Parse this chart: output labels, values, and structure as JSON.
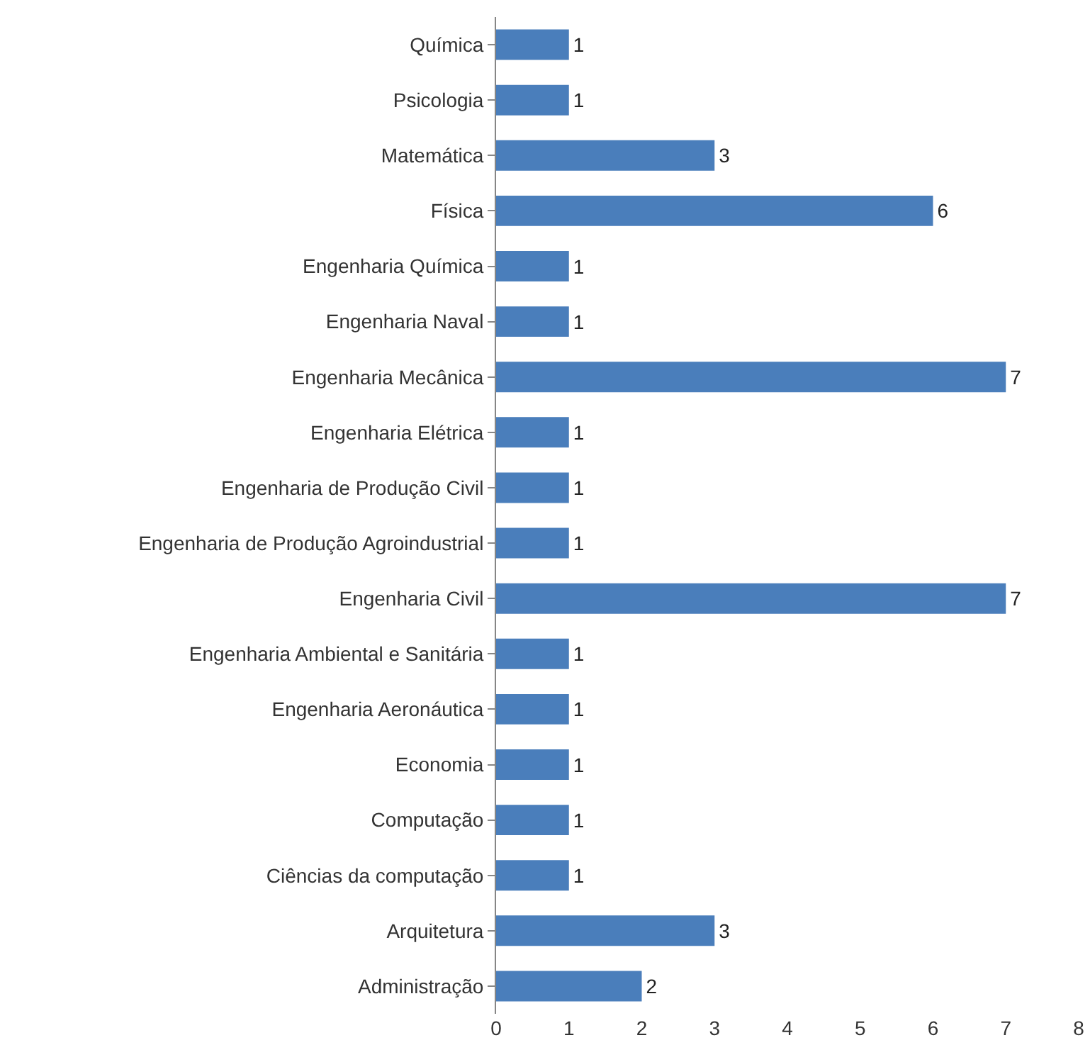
{
  "chart_data": {
    "type": "bar",
    "orientation": "horizontal",
    "categories": [
      "Química",
      "Psicologia",
      "Matemática",
      "Física",
      "Engenharia Química",
      "Engenharia Naval",
      "Engenharia Mecânica",
      "Engenharia Elétrica",
      "Engenharia de Produção Civil",
      "Engenharia de Produção Agroindustrial",
      "Engenharia Civil",
      "Engenharia Ambiental e Sanitária",
      "Engenharia Aeronáutica",
      "Economia",
      "Computação",
      "Ciências da computação",
      "Arquitetura",
      "Administração"
    ],
    "values": [
      1,
      1,
      3,
      6,
      1,
      1,
      7,
      1,
      1,
      1,
      7,
      1,
      1,
      1,
      1,
      1,
      3,
      2
    ],
    "color": "#4a7ebb",
    "xlim": [
      0,
      8
    ],
    "xticks": [
      0,
      1,
      2,
      3,
      4,
      5,
      6,
      7,
      8
    ],
    "grid": false,
    "data_labels": true
  }
}
